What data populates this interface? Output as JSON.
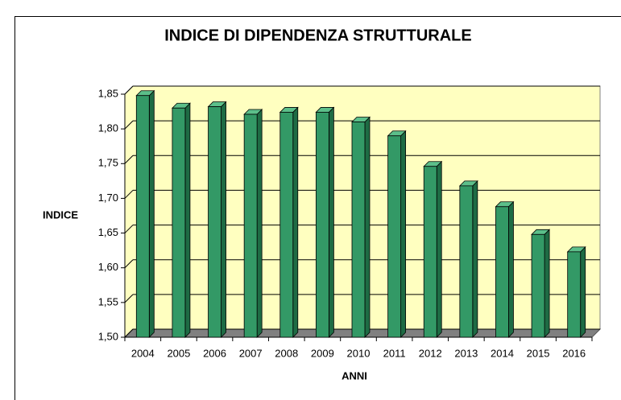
{
  "chart_data": {
    "type": "bar3d",
    "title": "INDICE DI DIPENDENZA STRUTTURALE",
    "x_label": "ANNI",
    "y_label": "INDICE",
    "categories": [
      "2004",
      "2005",
      "2006",
      "2007",
      "2008",
      "2009",
      "2010",
      "2011",
      "2012",
      "2013",
      "2014",
      "2015",
      "2016"
    ],
    "values": [
      1.848,
      1.83,
      1.832,
      1.821,
      1.824,
      1.824,
      1.81,
      1.79,
      1.746,
      1.718,
      1.688,
      1.648,
      1.623
    ],
    "color": "#339966",
    "ylim": [
      1.5,
      1.85
    ],
    "yticks": [
      {
        "value": 1.5,
        "label": "1,50"
      },
      {
        "value": 1.55,
        "label": "1,55"
      },
      {
        "value": 1.6,
        "label": "1,60"
      },
      {
        "value": 1.65,
        "label": "1,65"
      },
      {
        "value": 1.7,
        "label": "1,70"
      },
      {
        "value": 1.75,
        "label": "1,75"
      },
      {
        "value": 1.8,
        "label": "1,80"
      },
      {
        "value": 1.85,
        "label": "1,85"
      }
    ],
    "grid": true
  }
}
